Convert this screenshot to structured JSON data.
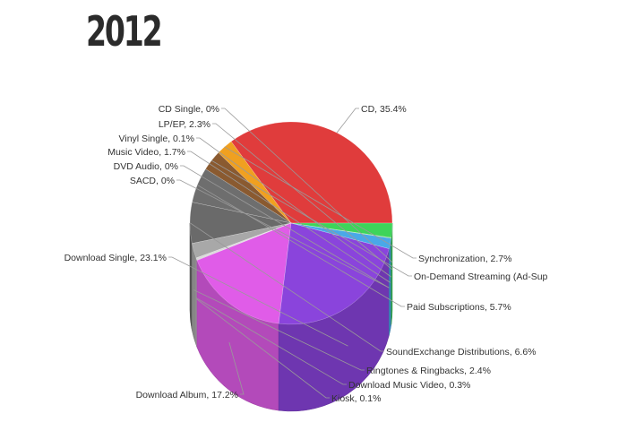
{
  "page": {
    "title": "2012"
  },
  "chart_data": {
    "type": "pie",
    "title": "2012",
    "slices": [
      {
        "label": "CD",
        "value": 35.4,
        "text": "CD, 35.4%",
        "color": "#e03c3c",
        "side": "right"
      },
      {
        "label": "Synchronization",
        "value": 2.7,
        "text": "Synchronization, 2.7%",
        "color": "#f0a020",
        "side": "right"
      },
      {
        "label": "On-Demand Streaming (Ad-Supported)",
        "value": 3.3,
        "text": "On-Demand Streaming (Ad-Sup",
        "color": "#8a5a30",
        "side": "right"
      },
      {
        "label": "Paid Subscriptions",
        "value": 5.7,
        "text": "Paid Subscriptions, 5.7%",
        "color": "#6e6e6e",
        "side": "right"
      },
      {
        "label": "SoundExchange Distributions",
        "value": 6.6,
        "text": "SoundExchange Distributions, 6.6%",
        "color": "#6a6a6a",
        "side": "right"
      },
      {
        "label": "Ringtones & Ringbacks",
        "value": 2.4,
        "text": "Ringtones & Ringbacks, 2.4%",
        "color": "#a8a8a8",
        "side": "right"
      },
      {
        "label": "Download Music Video",
        "value": 0.3,
        "text": "Download Music Video, 0.3%",
        "color": "#d8d8d8",
        "side": "right"
      },
      {
        "label": "Kiosk",
        "value": 0.1,
        "text": "Kiosk, 0.1%",
        "color": "#bdbdbd",
        "side": "right"
      },
      {
        "label": "Download Album",
        "value": 17.2,
        "text": "Download Album, 17.2%",
        "color": "#e05ce8",
        "side": "left"
      },
      {
        "label": "Download Single",
        "value": 23.1,
        "text": "Download Single, 23.1%",
        "color": "#8a44dc",
        "side": "left"
      },
      {
        "label": "SACD",
        "value": 0.0,
        "text": "SACD, 0%",
        "color": "#555555",
        "side": "left"
      },
      {
        "label": "DVD Audio",
        "value": 0.0,
        "text": "DVD Audio, 0%",
        "color": "#555555",
        "side": "left"
      },
      {
        "label": "Music Video",
        "value": 1.7,
        "text": "Music Video, 1.7%",
        "color": "#4aa8e8",
        "side": "left"
      },
      {
        "label": "Vinyl Single",
        "value": 0.1,
        "text": "Vinyl Single, 0.1%",
        "color": "#7acc60",
        "side": "left"
      },
      {
        "label": "LP/EP",
        "value": 2.3,
        "text": "LP/EP, 2.3%",
        "color": "#3ed45a",
        "side": "left"
      },
      {
        "label": "CD Single",
        "value": 0.0,
        "text": "CD Single, 0%",
        "color": "#5ea848",
        "side": "left"
      }
    ]
  }
}
